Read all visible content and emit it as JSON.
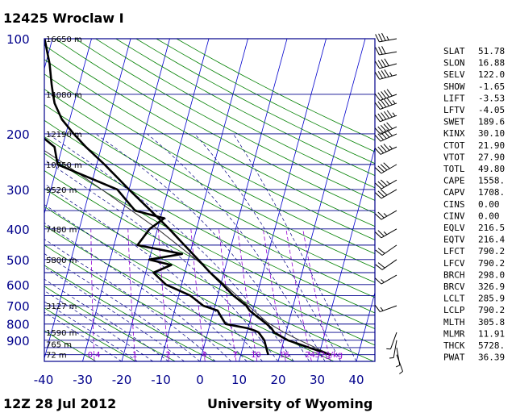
{
  "header": {
    "title": "12425  Wroclaw I"
  },
  "footer": {
    "time": "12Z 28 Jul 2012",
    "source": "University of Wyoming"
  },
  "chart_data": {
    "type": "skew-t",
    "pressure_ticks": [
      100,
      200,
      300,
      400,
      500,
      600,
      700,
      800,
      900
    ],
    "temperature_ticks": [
      -40,
      -30,
      -20,
      -10,
      0,
      10,
      20,
      30,
      40
    ],
    "xlim": [
      -40,
      45
    ],
    "plim": [
      1050,
      100
    ],
    "height_labels": [
      {
        "p": 100,
        "label": "16650 m"
      },
      {
        "p": 150,
        "label": "14080 m"
      },
      {
        "p": 200,
        "label": "12190 m"
      },
      {
        "p": 250,
        "label": "10750 m"
      },
      {
        "p": 300,
        "label": "9520 m"
      },
      {
        "p": 400,
        "label": "7480 m"
      },
      {
        "p": 500,
        "label": "5800 m"
      },
      {
        "p": 700,
        "label": "3127 m"
      },
      {
        "p": 850,
        "label": "1590 m"
      },
      {
        "p": 925,
        "label": "765 m"
      },
      {
        "p": 1000,
        "label": "72 m"
      }
    ],
    "mixing_ratio_labels": [
      "0.4",
      "1",
      "2",
      "4",
      "7",
      "10",
      "16",
      "24",
      "32g/kg"
    ],
    "mixing_ratios": [
      0.4,
      1,
      2,
      4,
      7,
      10,
      16,
      24,
      32
    ],
    "temperature_profile": [
      {
        "p": 1000,
        "t": 33
      },
      {
        "p": 975,
        "t": 30
      },
      {
        "p": 950,
        "t": 27
      },
      {
        "p": 925,
        "t": 24
      },
      {
        "p": 900,
        "t": 21
      },
      {
        "p": 875,
        "t": 19
      },
      {
        "p": 850,
        "t": 17
      },
      {
        "p": 825,
        "t": 16
      },
      {
        "p": 800,
        "t": 14.5
      },
      {
        "p": 775,
        "t": 12.8
      },
      {
        "p": 750,
        "t": 11
      },
      {
        "p": 725,
        "t": 9.2
      },
      {
        "p": 700,
        "t": 8
      },
      {
        "p": 650,
        "t": 4
      },
      {
        "p": 600,
        "t": 0.5
      },
      {
        "p": 550,
        "t": -3.5
      },
      {
        "p": 500,
        "t": -7.5
      },
      {
        "p": 450,
        "t": -12
      },
      {
        "p": 400,
        "t": -17
      },
      {
        "p": 350,
        "t": -23
      },
      {
        "p": 300,
        "t": -30
      },
      {
        "p": 250,
        "t": -38
      },
      {
        "p": 220,
        "t": -44
      },
      {
        "p": 200,
        "t": -48
      },
      {
        "p": 180,
        "t": -52
      },
      {
        "p": 160,
        "t": -55
      },
      {
        "p": 150,
        "t": -56
      },
      {
        "p": 140,
        "t": -57
      },
      {
        "p": 120,
        "t": -59
      },
      {
        "p": 100,
        "t": -62
      }
    ],
    "dewpoint_profile": [
      {
        "p": 1000,
        "t": 17
      },
      {
        "p": 975,
        "t": 16.5
      },
      {
        "p": 950,
        "t": 16
      },
      {
        "p": 925,
        "t": 15.5
      },
      {
        "p": 900,
        "t": 15
      },
      {
        "p": 875,
        "t": 14
      },
      {
        "p": 850,
        "t": 13
      },
      {
        "p": 840,
        "t": 12
      },
      {
        "p": 825,
        "t": 10
      },
      {
        "p": 800,
        "t": 4
      },
      {
        "p": 775,
        "t": 3
      },
      {
        "p": 750,
        "t": 2
      },
      {
        "p": 725,
        "t": 1
      },
      {
        "p": 700,
        "t": -3
      },
      {
        "p": 650,
        "t": -7
      },
      {
        "p": 600,
        "t": -14
      },
      {
        "p": 550,
        "t": -18
      },
      {
        "p": 520,
        "t": -14
      },
      {
        "p": 500,
        "t": -20
      },
      {
        "p": 480,
        "t": -12
      },
      {
        "p": 450,
        "t": -24
      },
      {
        "p": 400,
        "t": -22
      },
      {
        "p": 370,
        "t": -19
      },
      {
        "p": 350,
        "t": -27
      },
      {
        "p": 300,
        "t": -33
      },
      {
        "p": 250,
        "t": -50
      },
      {
        "p": 220,
        "t": -52
      },
      {
        "p": 200,
        "t": -57
      },
      {
        "p": 170,
        "t": -67
      },
      {
        "p": 150,
        "t": -68
      },
      {
        "p": 100,
        "t": -77
      }
    ],
    "parcel_profile": [
      {
        "p": 1000,
        "t": 33
      },
      {
        "p": 900,
        "t": 24
      },
      {
        "p": 850,
        "t": 19.5
      },
      {
        "p": 790,
        "t": 14.5
      },
      {
        "p": 700,
        "t": 8.5
      },
      {
        "p": 600,
        "t": 1
      },
      {
        "p": 500,
        "t": -8
      },
      {
        "p": 400,
        "t": -20
      },
      {
        "p": 300,
        "t": -37
      },
      {
        "p": 250,
        "t": -48
      },
      {
        "p": 200,
        "t": -62
      }
    ],
    "wind_barbs": [
      {
        "p": 100,
        "dir": 260,
        "spd": 35
      },
      {
        "p": 110,
        "dir": 260,
        "spd": 30
      },
      {
        "p": 120,
        "dir": 255,
        "spd": 40
      },
      {
        "p": 130,
        "dir": 255,
        "spd": 45
      },
      {
        "p": 150,
        "dir": 250,
        "spd": 50
      },
      {
        "p": 160,
        "dir": 250,
        "spd": 55
      },
      {
        "p": 175,
        "dir": 250,
        "spd": 55
      },
      {
        "p": 190,
        "dir": 245,
        "spd": 50
      },
      {
        "p": 200,
        "dir": 245,
        "spd": 50
      },
      {
        "p": 220,
        "dir": 245,
        "spd": 45
      },
      {
        "p": 250,
        "dir": 240,
        "spd": 40
      },
      {
        "p": 280,
        "dir": 240,
        "spd": 35
      },
      {
        "p": 300,
        "dir": 240,
        "spd": 30
      },
      {
        "p": 350,
        "dir": 240,
        "spd": 25
      },
      {
        "p": 400,
        "dir": 240,
        "spd": 25
      },
      {
        "p": 450,
        "dir": 235,
        "spd": 20
      },
      {
        "p": 500,
        "dir": 235,
        "spd": 20
      },
      {
        "p": 560,
        "dir": 240,
        "spd": 15
      },
      {
        "p": 700,
        "dir": 250,
        "spd": 15
      },
      {
        "p": 850,
        "dir": 200,
        "spd": 5
      },
      {
        "p": 900,
        "dir": 190,
        "spd": 5
      },
      {
        "p": 950,
        "dir": 170,
        "spd": 5
      },
      {
        "p": 1000,
        "dir": 160,
        "spd": 5
      }
    ]
  },
  "indices": [
    {
      "name": "SLAT",
      "value": "51.78"
    },
    {
      "name": "SLON",
      "value": "16.88"
    },
    {
      "name": "SELV",
      "value": "122.0"
    },
    {
      "name": "SHOW",
      "value": "-1.65"
    },
    {
      "name": "LIFT",
      "value": "-3.53"
    },
    {
      "name": "LFTV",
      "value": "-4.05"
    },
    {
      "name": "SWET",
      "value": "189.6"
    },
    {
      "name": "KINX",
      "value": "30.10"
    },
    {
      "name": "CTOT",
      "value": "21.90"
    },
    {
      "name": "VTOT",
      "value": "27.90"
    },
    {
      "name": "TOTL",
      "value": "49.80"
    },
    {
      "name": "CAPE",
      "value": "1558."
    },
    {
      "name": "CAPV",
      "value": "1708."
    },
    {
      "name": "CINS",
      "value": "0.00"
    },
    {
      "name": "CINV",
      "value": "0.00"
    },
    {
      "name": "EQLV",
      "value": "216.5"
    },
    {
      "name": "EQTV",
      "value": "216.4"
    },
    {
      "name": "LFCT",
      "value": "790.2"
    },
    {
      "name": "LFCV",
      "value": "790.2"
    },
    {
      "name": "BRCH",
      "value": "298.0"
    },
    {
      "name": "BRCV",
      "value": "326.9"
    },
    {
      "name": "LCLT",
      "value": "285.9"
    },
    {
      "name": "LCLP",
      "value": "790.2"
    },
    {
      "name": "MLTH",
      "value": "305.8"
    },
    {
      "name": "MLMR",
      "value": "11.91"
    },
    {
      "name": "THCK",
      "value": "5728."
    },
    {
      "name": "PWAT",
      "value": "36.39"
    }
  ],
  "colors": {
    "isobar": "#00008b",
    "isotherm": "#0000cd",
    "dry_adiabat": "#008000",
    "moist_adiabat": "#000080",
    "mixing_ratio": "#9400d3",
    "profile": "#000000"
  }
}
